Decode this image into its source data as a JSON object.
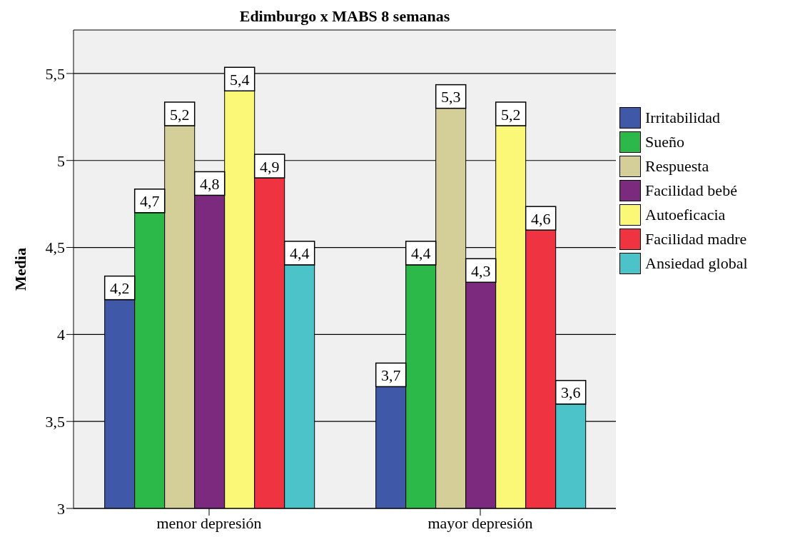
{
  "chart_data": {
    "type": "bar",
    "title": "Edimburgo x MABS 8 semanas",
    "ylabel": "Media",
    "categories": [
      "menor depresión",
      "mayor depresión"
    ],
    "series": [
      {
        "name": "Irritabilidad",
        "color": "#3f58a8",
        "values": [
          4.2,
          3.7
        ],
        "value_labels": [
          "4,2",
          "3,7"
        ]
      },
      {
        "name": "Sueño",
        "color": "#2db84a",
        "values": [
          4.7,
          4.4
        ],
        "value_labels": [
          "4,7",
          "4,4"
        ]
      },
      {
        "name": "Respuesta",
        "color": "#d4cf98",
        "values": [
          5.2,
          5.3
        ],
        "value_labels": [
          "5,2",
          "5,3"
        ]
      },
      {
        "name": "Facilidad bebé",
        "color": "#7b2a7e",
        "values": [
          4.8,
          4.3
        ],
        "value_labels": [
          "4,8",
          "4,3"
        ]
      },
      {
        "name": "Autoeficacia",
        "color": "#fbf878",
        "values": [
          5.4,
          5.2
        ],
        "value_labels": [
          "5,4",
          "5,2"
        ]
      },
      {
        "name": "Facilidad madre",
        "color": "#ef3340",
        "values": [
          4.9,
          4.6
        ],
        "value_labels": [
          "4,9",
          "4,6"
        ]
      },
      {
        "name": "Ansiedad global",
        "color": "#4bc3c8",
        "values": [
          4.4,
          3.6
        ],
        "value_labels": [
          "4,4",
          "3,6"
        ]
      }
    ],
    "ylim": [
      3,
      5.75
    ],
    "yticks": [
      {
        "value": 3,
        "label": "3"
      },
      {
        "value": 3.5,
        "label": "3,5"
      },
      {
        "value": 4,
        "label": "4"
      },
      {
        "value": 4.5,
        "label": "4,5"
      },
      {
        "value": 5,
        "label": "5"
      },
      {
        "value": 5.5,
        "label": "5,5"
      }
    ],
    "grid": "y",
    "legend": "right"
  }
}
